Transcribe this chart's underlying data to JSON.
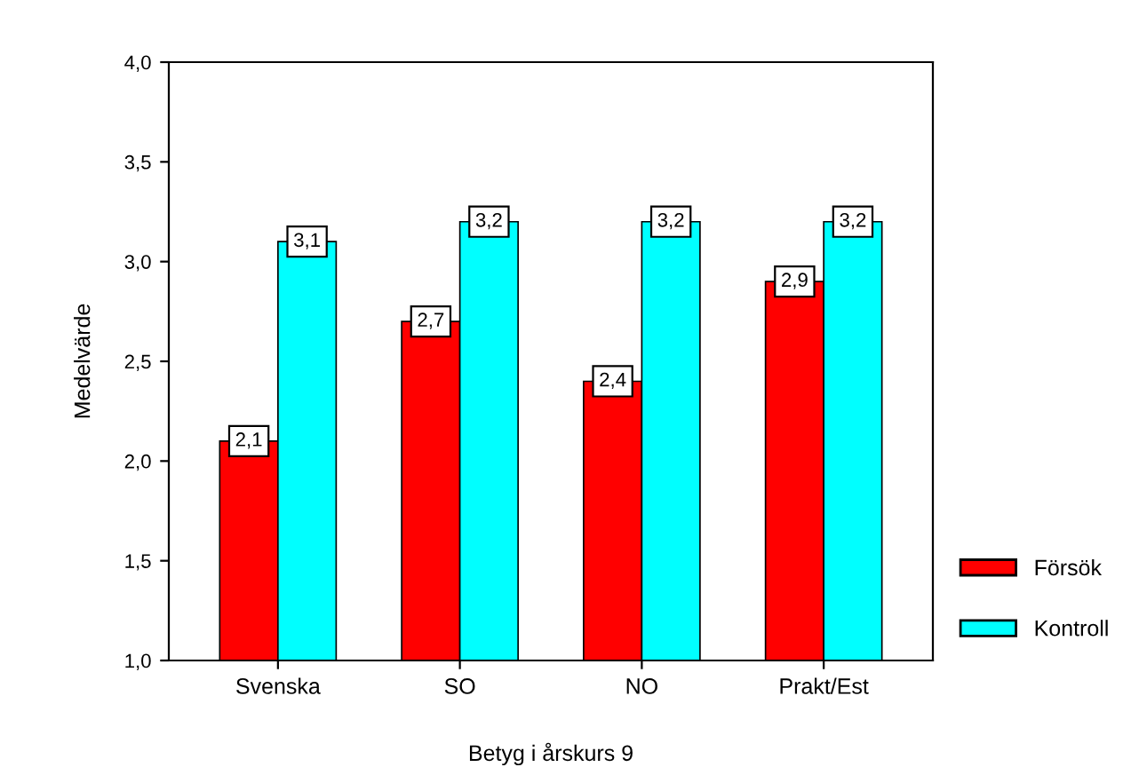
{
  "chart_data": {
    "type": "bar",
    "xlabel": "Betyg i årskurs 9",
    "ylabel": "Medelvärde",
    "categories": [
      "Svenska",
      "SO",
      "NO",
      "Prakt/Est"
    ],
    "series": [
      {
        "name": "Försök",
        "color": "#ff0000",
        "values": [
          2.1,
          2.7,
          2.4,
          2.9
        ],
        "value_labels": [
          "2,1",
          "2,7",
          "2,4",
          "2,9"
        ]
      },
      {
        "name": "Kontroll",
        "color": "#00ffff",
        "values": [
          3.1,
          3.2,
          3.2,
          3.2
        ],
        "value_labels": [
          "3,1",
          "3,2",
          "3,2",
          "3,2"
        ]
      }
    ],
    "ylim": [
      1.0,
      4.0
    ],
    "yticks": [
      {
        "value": 1.0,
        "label": "1,0"
      },
      {
        "value": 1.5,
        "label": "1,5"
      },
      {
        "value": 2.0,
        "label": "2,0"
      },
      {
        "value": 2.5,
        "label": "2,5"
      },
      {
        "value": 3.0,
        "label": "3,0"
      },
      {
        "value": 3.5,
        "label": "3,5"
      },
      {
        "value": 4.0,
        "label": "4,0"
      }
    ],
    "grid": false,
    "legend": "right"
  }
}
